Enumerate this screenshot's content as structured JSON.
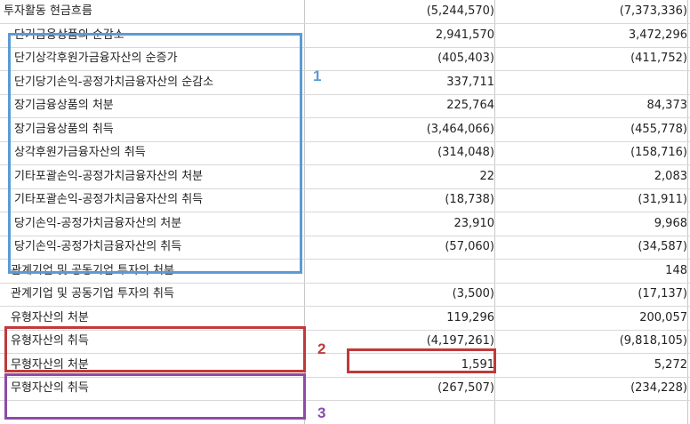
{
  "colors": {
    "blue": "#5b9bd5",
    "red": "#c0393b",
    "purple": "#8e4aa8"
  },
  "rows": [
    {
      "label": "투자활동 현금흐름",
      "v1": "(5,244,570)",
      "v2": "(7,373,336)"
    },
    {
      "label": "단기금융상품의 순감소",
      "v1": "2,941,570",
      "v2": "3,472,296"
    },
    {
      "label": "단기상각후원가금융자산의 순증가",
      "v1": "(405,403)",
      "v2": "(411,752)"
    },
    {
      "label": "단기당기손익-공정가치금융자산의 순감소",
      "v1": "337,711",
      "v2": ""
    },
    {
      "label": "장기금융상품의 처분",
      "v1": "225,764",
      "v2": "84,373"
    },
    {
      "label": "장기금융상품의 취득",
      "v1": "(3,464,066)",
      "v2": "(455,778)"
    },
    {
      "label": "상각후원가금융자산의 취득",
      "v1": "(314,048)",
      "v2": "(158,716)"
    },
    {
      "label": "기타포괄손익-공정가치금융자산의 처분",
      "v1": "22",
      "v2": "2,083"
    },
    {
      "label": "기타포괄손익-공정가치금융자산의 취득",
      "v1": "(18,738)",
      "v2": "(31,911)"
    },
    {
      "label": "당기손익-공정가치금융자산의 처분",
      "v1": "23,910",
      "v2": "9,968"
    },
    {
      "label": "당기손익-공정가치금융자산의 취득",
      "v1": "(57,060)",
      "v2": "(34,587)"
    },
    {
      "label": "관계기업 및 공동기업 투자의 처분",
      "v1": "",
      "v2": "148"
    },
    {
      "label": "관계기업 및 공동기업 투자의 취득",
      "v1": "(3,500)",
      "v2": "(17,137)"
    },
    {
      "label": "유형자산의 처분",
      "v1": "119,296",
      "v2": "200,057"
    },
    {
      "label": "유형자산의 취득",
      "v1": "(4,197,261)",
      "v2": "(9,818,105)"
    },
    {
      "label": "무형자산의 처분",
      "v1": "1,591",
      "v2": "5,272"
    },
    {
      "label": "무형자산의 취득",
      "v1": "(267,507)",
      "v2": "(234,228)"
    }
  ],
  "annotations": {
    "blue_label": "1",
    "red_label": "2",
    "purple_label": "3"
  }
}
